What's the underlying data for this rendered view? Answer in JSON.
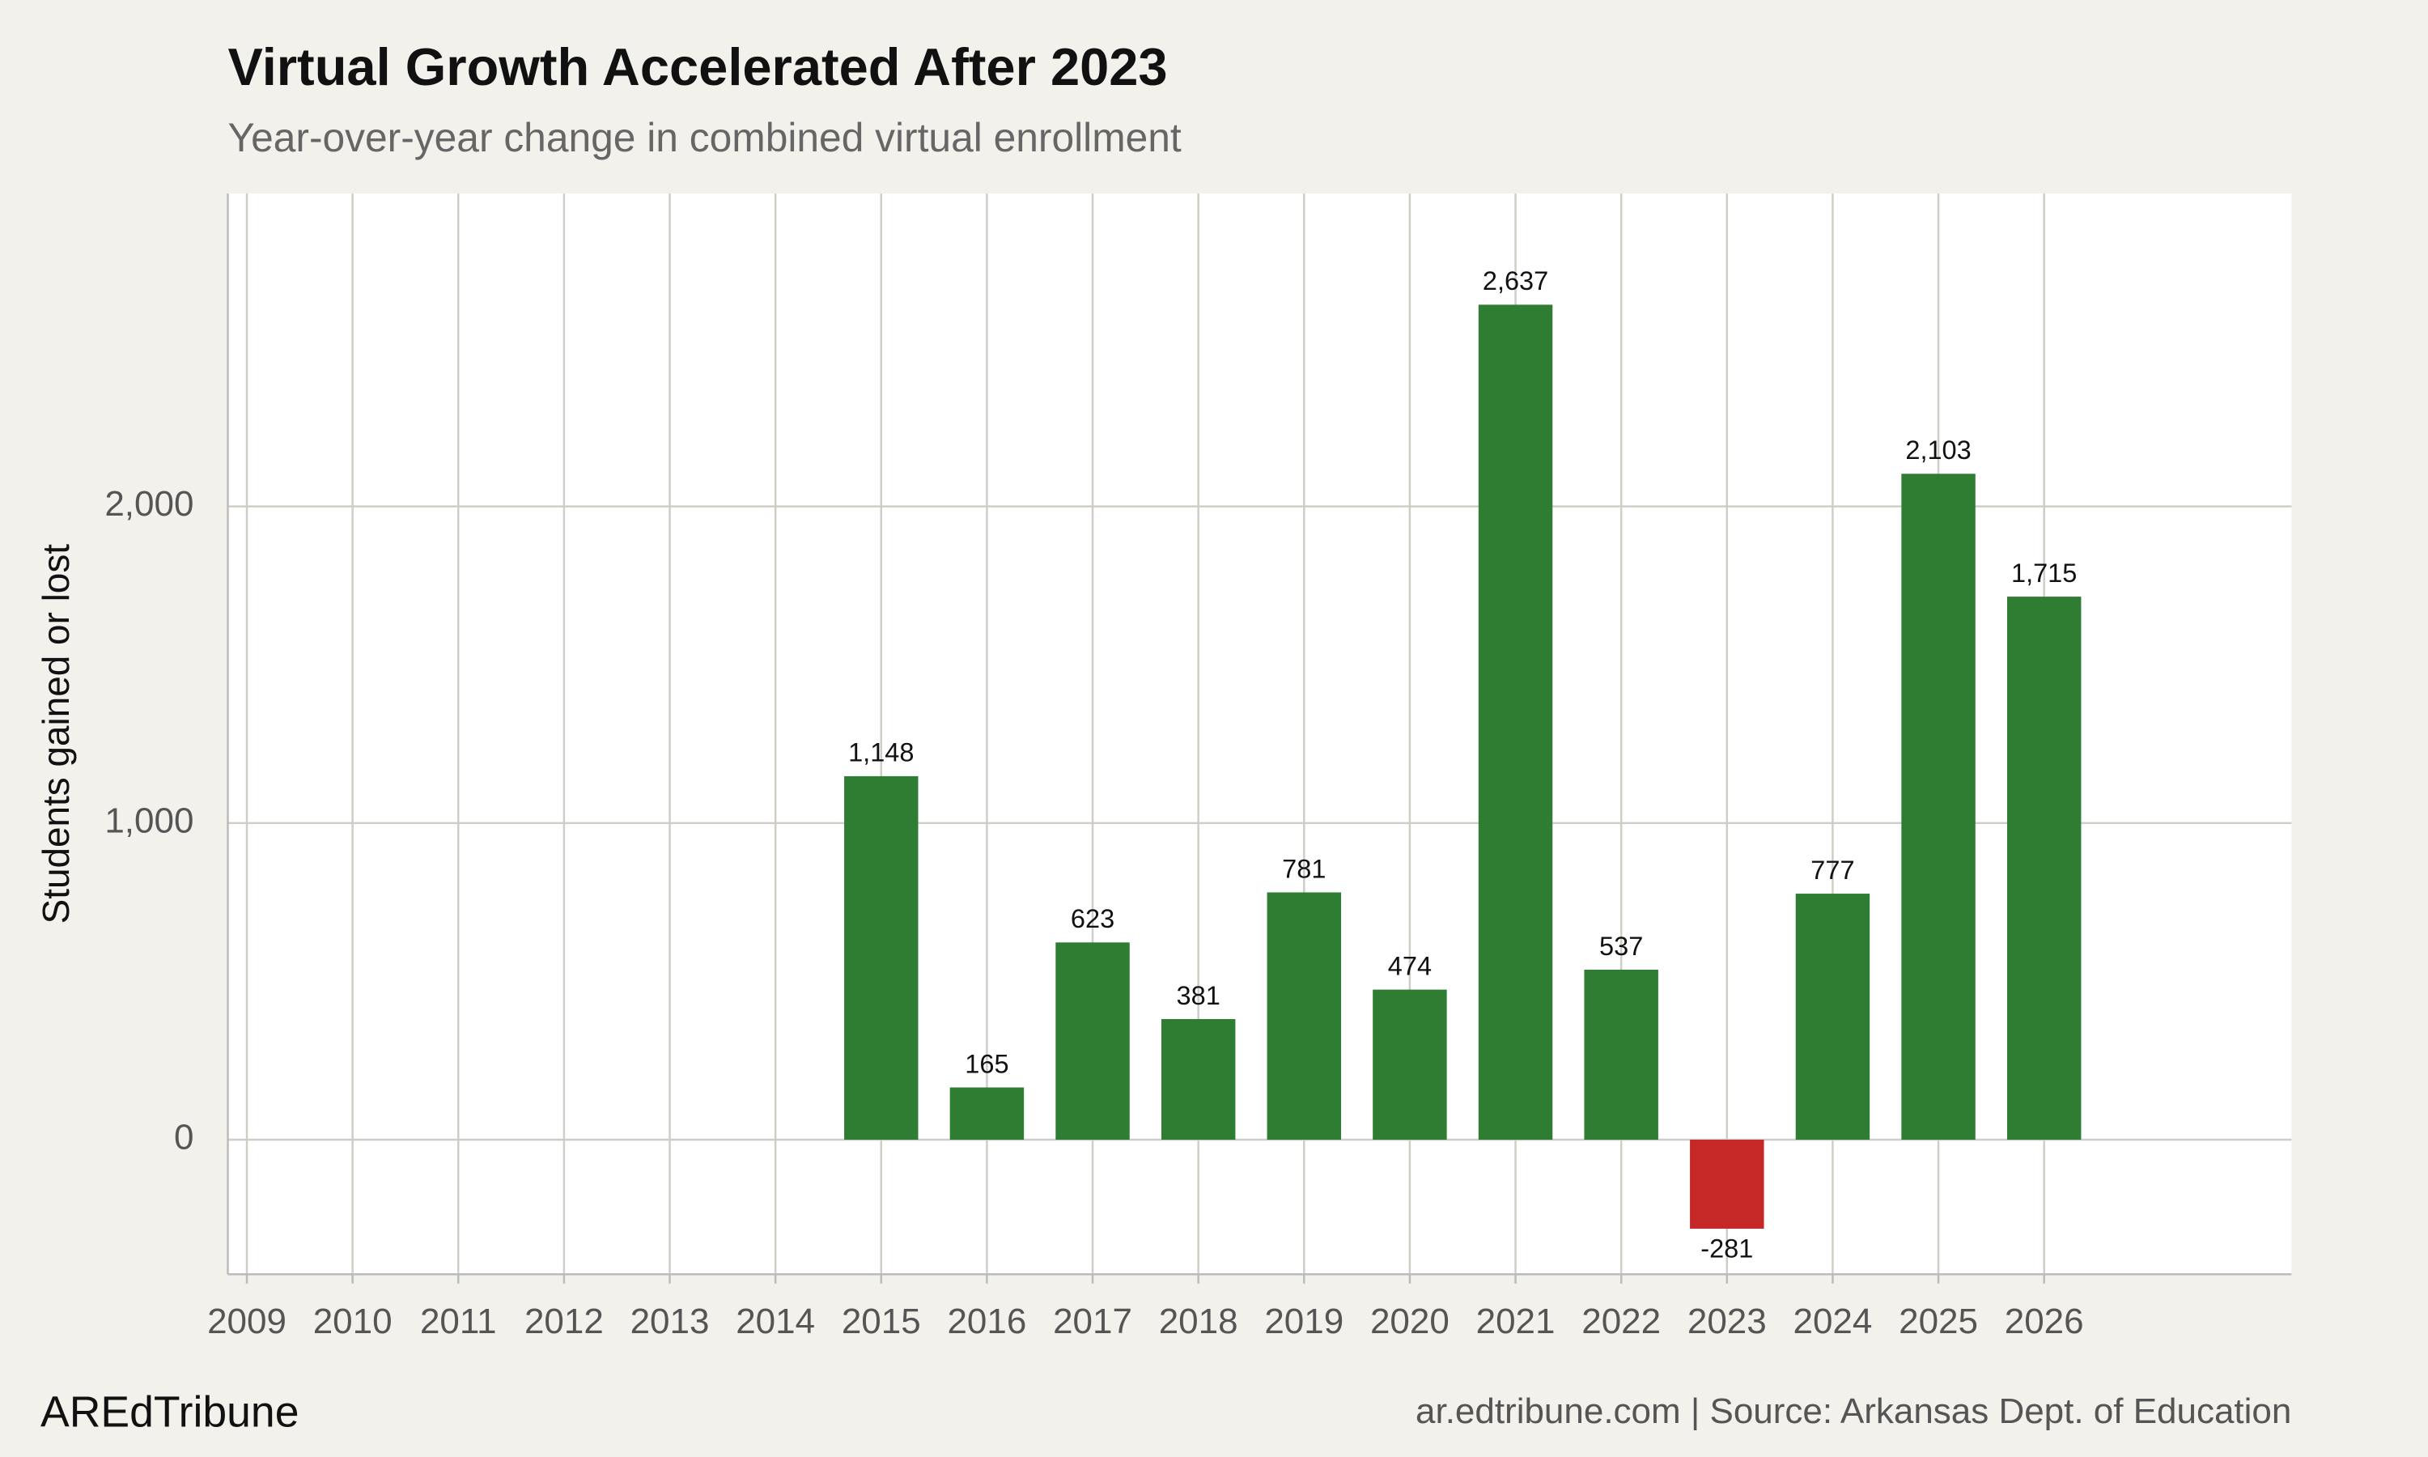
{
  "chart_data": {
    "type": "bar",
    "title": "Virtual Growth Accelerated After 2023",
    "subtitle": "Year-over-year change in combined virtual enrollment",
    "y_label": "Students gained or lost",
    "brand": "AREdTribune",
    "source": "ar.edtribune.com | Source: Arkansas Dept. of Education",
    "x": [
      2015,
      2016,
      2017,
      2018,
      2019,
      2020,
      2021,
      2022,
      2023,
      2024,
      2025,
      2026
    ],
    "values": [
      1148,
      165,
      623,
      381,
      781,
      474,
      2637,
      537,
      -281,
      777,
      2103,
      1715
    ],
    "value_labels": [
      "1,148",
      "165",
      "623",
      "381",
      "781",
      "474",
      "2,637",
      "537",
      "-281",
      "777",
      "2,103",
      "1,715"
    ],
    "color": "#2e7d32",
    "negative_color": "#c62828",
    "xlim": [
      2008.82,
      2028.34
    ],
    "xticks": [
      2009,
      2010,
      2011,
      2012,
      2013,
      2014,
      2015,
      2016,
      2017,
      2018,
      2019,
      2020,
      2021,
      2022,
      2023,
      2024,
      2025,
      2026
    ],
    "ylim": [
      -425,
      2988
    ],
    "yticks": [
      0,
      {
        "value": 1000,
        "label": "1,000"
      },
      {
        "value": 2000,
        "label": "2,000"
      }
    ],
    "grid": true
  }
}
